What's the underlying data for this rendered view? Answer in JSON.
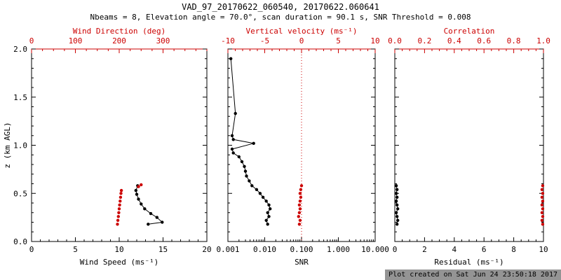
{
  "title": "VAD_97_20170622_060540, 20170622.060641",
  "subtitle": "Nbeams = 8, Elevation angle = 70.0°, scan duration = 90.1 s, SNR Threshold = 0.008",
  "footer": "Plot created on Sat Jun 24 23:50:18 2017",
  "colors": {
    "primary": "#000000",
    "secondary": "#cc0000",
    "background": "#ffffff"
  },
  "chart_data": {
    "type": "scatter",
    "y_axis": {
      "label": "z (km AGL)",
      "min": 0,
      "max": 2,
      "ticks": [
        0,
        0.5,
        1,
        1.5,
        2
      ],
      "tick_labels": [
        "0.0",
        "0.5",
        "1.0",
        "1.5",
        "2.0"
      ],
      "minor_step": 0.1
    },
    "panels": [
      {
        "name": "wind",
        "show_y_labels": true,
        "x_bottom": {
          "label": "Wind Speed (ms⁻¹)",
          "scale": "linear",
          "min": 0,
          "max": 20,
          "ticks": [
            0,
            5,
            10,
            15,
            20
          ],
          "tick_labels": [
            "0",
            "5",
            "10",
            "15",
            "20"
          ],
          "minor_step": 1,
          "color": "#000000"
        },
        "x_top": {
          "label": "Wind Direction (deg)",
          "scale": "linear",
          "min": 0,
          "max": 400,
          "ticks": [
            0,
            100,
            200,
            300
          ],
          "tick_labels": [
            "0",
            "100",
            "200",
            "300"
          ],
          "minor_step": 25,
          "color": "#cc0000"
        },
        "ref_lines": [],
        "series": [
          {
            "name": "wind-speed",
            "axis": "bottom",
            "color": "#000000",
            "line": true,
            "marker": true,
            "points": [
              [
                13.3,
                0.18
              ],
              [
                14.9,
                0.2
              ],
              [
                14.3,
                0.25
              ],
              [
                13.6,
                0.29
              ],
              [
                12.9,
                0.34
              ],
              [
                12.5,
                0.39
              ],
              [
                12.2,
                0.44
              ],
              [
                12.0,
                0.49
              ],
              [
                11.9,
                0.53
              ],
              [
                12.1,
                0.58
              ]
            ]
          },
          {
            "name": "wind-direction",
            "axis": "top",
            "color": "#cc0000",
            "line": false,
            "marker": true,
            "points": [
              [
                196,
                0.18
              ],
              [
                197,
                0.22
              ],
              [
                198,
                0.26
              ],
              [
                199,
                0.3
              ],
              [
                200,
                0.34
              ],
              [
                201,
                0.38
              ],
              [
                202,
                0.42
              ],
              [
                203,
                0.46
              ],
              [
                204,
                0.5
              ],
              [
                205,
                0.53
              ],
              [
                244,
                0.57
              ],
              [
                250,
                0.59
              ]
            ]
          }
        ]
      },
      {
        "name": "snr",
        "show_y_labels": false,
        "x_bottom": {
          "label": "SNR",
          "scale": "log",
          "min": 0.001,
          "max": 10,
          "ticks": [
            0.001,
            0.01,
            0.1,
            1,
            10
          ],
          "tick_labels": [
            "0.001",
            "0.010",
            "0.100",
            "1.000",
            "10.000"
          ],
          "color": "#000000"
        },
        "x_top": {
          "label": "Vertical velocity (ms⁻¹)",
          "scale": "linear",
          "min": -10,
          "max": 10,
          "ticks": [
            -10,
            -5,
            0,
            5,
            10
          ],
          "tick_labels": [
            "-10",
            "-5",
            "0",
            "5",
            "10"
          ],
          "minor_step": 1,
          "color": "#cc0000"
        },
        "ref_lines": [
          {
            "axis": "top",
            "x": 0,
            "color": "#cc0000",
            "dash": "dotted"
          }
        ],
        "series": [
          {
            "name": "snr-profile",
            "axis": "bottom",
            "color": "#000000",
            "line": true,
            "marker": true,
            "points": [
              [
                0.012,
                0.18
              ],
              [
                0.011,
                0.22
              ],
              [
                0.013,
                0.26
              ],
              [
                0.012,
                0.3
              ],
              [
                0.014,
                0.34
              ],
              [
                0.013,
                0.38
              ],
              [
                0.011,
                0.42
              ],
              [
                0.009,
                0.46
              ],
              [
                0.0075,
                0.5
              ],
              [
                0.006,
                0.54
              ],
              [
                0.0045,
                0.58
              ],
              [
                0.0038,
                0.63
              ],
              [
                0.0032,
                0.68
              ],
              [
                0.003,
                0.73
              ],
              [
                0.0028,
                0.78
              ],
              [
                0.0024,
                0.83
              ],
              [
                0.002,
                0.88
              ],
              [
                0.0014,
                0.92
              ],
              [
                0.0013,
                0.96
              ],
              [
                0.005,
                1.02
              ],
              [
                0.0014,
                1.06
              ],
              [
                0.0013,
                1.1
              ],
              [
                0.0016,
                1.33
              ],
              [
                0.0012,
                1.9
              ]
            ]
          },
          {
            "name": "vertical-velocity",
            "axis": "top",
            "color": "#cc0000",
            "line": false,
            "marker": true,
            "points": [
              [
                -0.3,
                0.18
              ],
              [
                -0.2,
                0.22
              ],
              [
                -0.4,
                0.26
              ],
              [
                -0.3,
                0.3
              ],
              [
                -0.2,
                0.34
              ],
              [
                -0.3,
                0.38
              ],
              [
                -0.2,
                0.42
              ],
              [
                -0.1,
                0.46
              ],
              [
                -0.2,
                0.5
              ],
              [
                -0.1,
                0.54
              ],
              [
                0.0,
                0.58
              ]
            ]
          }
        ]
      },
      {
        "name": "residual",
        "show_y_labels": false,
        "x_bottom": {
          "label": "Residual (ms⁻¹)",
          "scale": "linear",
          "min": 0,
          "max": 10,
          "ticks": [
            0,
            2,
            4,
            6,
            8,
            10
          ],
          "tick_labels": [
            "0",
            "2",
            "4",
            "6",
            "8",
            "10"
          ],
          "minor_step": 0.5,
          "color": "#000000"
        },
        "x_top": {
          "label": "Correlation",
          "scale": "linear",
          "min": 0,
          "max": 1,
          "ticks": [
            0,
            0.2,
            0.4,
            0.6,
            0.8,
            1.0
          ],
          "tick_labels": [
            "0.0",
            "0.2",
            "0.4",
            "0.6",
            "0.8",
            "1.0"
          ],
          "minor_step": 0.05,
          "color": "#cc0000"
        },
        "ref_lines": [],
        "series": [
          {
            "name": "residual-profile",
            "axis": "bottom",
            "color": "#000000",
            "line": true,
            "marker": true,
            "points": [
              [
                0.15,
                0.18
              ],
              [
                0.2,
                0.22
              ],
              [
                0.15,
                0.26
              ],
              [
                0.1,
                0.3
              ],
              [
                0.2,
                0.34
              ],
              [
                0.15,
                0.38
              ],
              [
                0.1,
                0.42
              ],
              [
                0.15,
                0.46
              ],
              [
                0.1,
                0.5
              ],
              [
                0.15,
                0.54
              ],
              [
                0.1,
                0.58
              ]
            ]
          },
          {
            "name": "correlation-profile",
            "axis": "top",
            "color": "#cc0000",
            "line": false,
            "marker": true,
            "points": [
              [
                0.995,
                0.18
              ],
              [
                0.99,
                0.22
              ],
              [
                0.995,
                0.26
              ],
              [
                0.99,
                0.3
              ],
              [
                0.995,
                0.34
              ],
              [
                0.99,
                0.38
              ],
              [
                0.995,
                0.42
              ],
              [
                0.99,
                0.46
              ],
              [
                0.995,
                0.5
              ],
              [
                0.99,
                0.54
              ],
              [
                0.995,
                0.58
              ]
            ]
          }
        ]
      }
    ]
  }
}
